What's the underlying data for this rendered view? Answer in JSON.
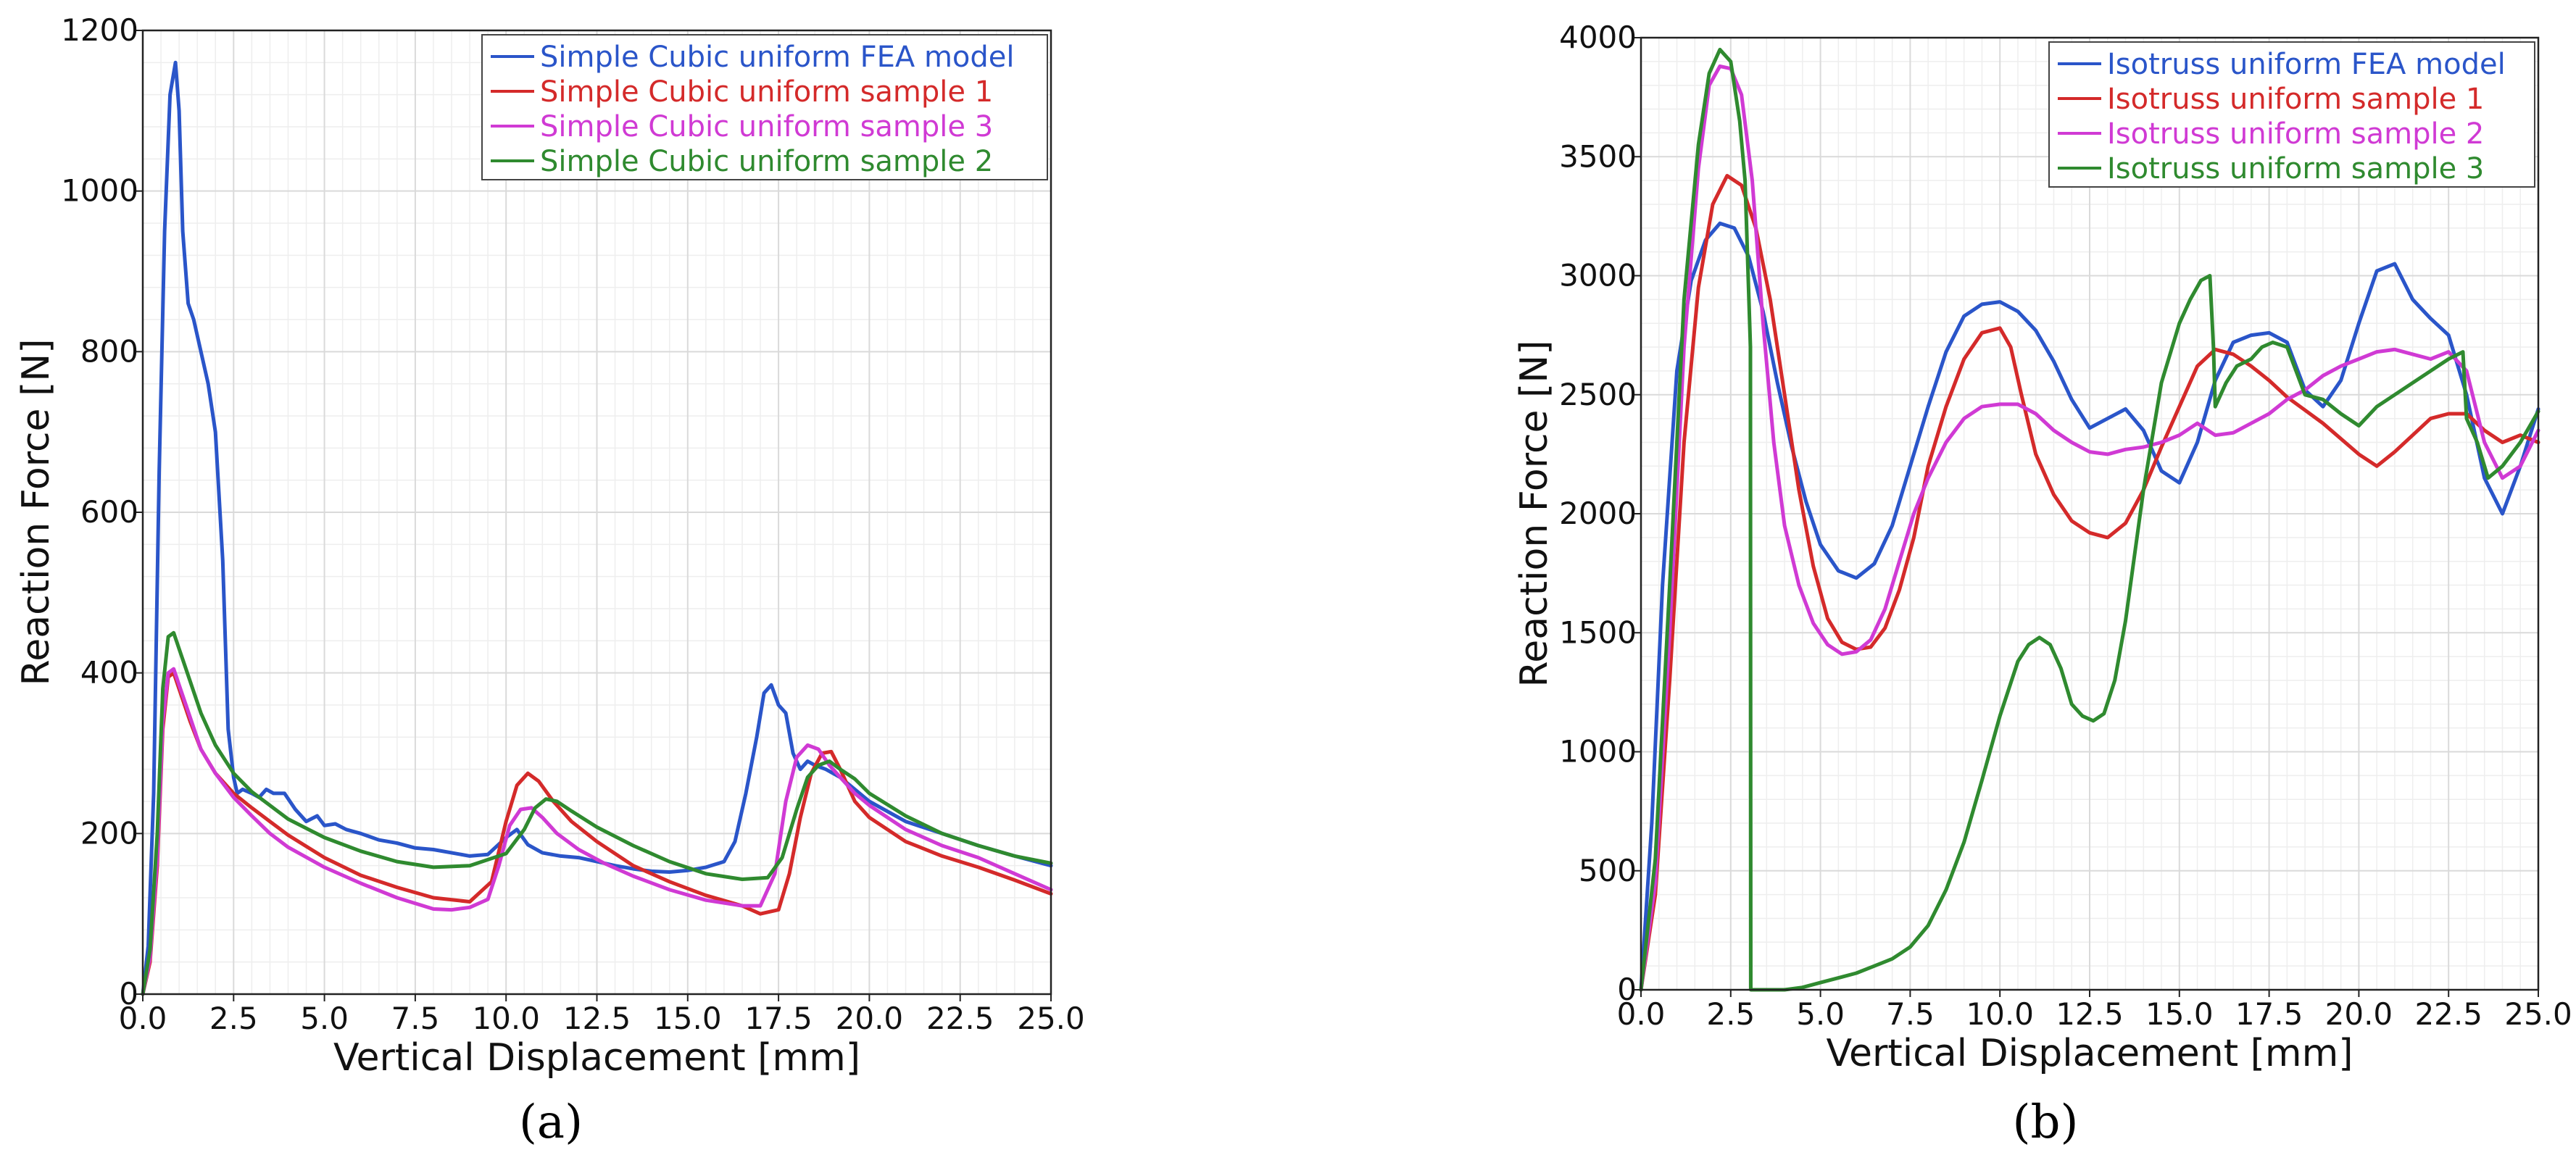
{
  "figure": {
    "panel_labels": [
      "(a)",
      "(b)"
    ]
  },
  "chart_data": [
    {
      "type": "line",
      "panel": "(a)",
      "xlabel": "Vertical Displacement [mm]",
      "ylabel": "Reaction Force [N]",
      "xlim": [
        0,
        25
      ],
      "ylim": [
        0,
        1200
      ],
      "xticks": [
        0,
        2.5,
        5,
        7.5,
        10,
        12.5,
        15,
        17.5,
        20,
        22.5,
        25
      ],
      "xtick_labels": [
        "0.0",
        "2.5",
        "5.0",
        "7.5",
        "10.0",
        "12.5",
        "15.0",
        "17.5",
        "20.0",
        "22.5",
        "25.0"
      ],
      "yticks": [
        0,
        200,
        400,
        600,
        800,
        1000,
        1200
      ],
      "ytick_labels": [
        "0",
        "200",
        "400",
        "600",
        "800",
        "1000",
        "1200"
      ],
      "grid": true,
      "legend_position": "top-right",
      "series": [
        {
          "name": "Simple Cubic uniform FEA model",
          "color": "#2a55c9",
          "x": [
            0,
            0.15,
            0.3,
            0.45,
            0.6,
            0.75,
            0.9,
            1.0,
            1.1,
            1.25,
            1.4,
            1.6,
            1.8,
            2.0,
            2.2,
            2.35,
            2.5,
            2.6,
            2.75,
            3.0,
            3.2,
            3.4,
            3.6,
            3.9,
            4.2,
            4.5,
            4.8,
            5.0,
            5.3,
            5.6,
            6.0,
            6.5,
            7.0,
            7.5,
            8.0,
            8.5,
            9.0,
            9.5,
            10.0,
            10.3,
            10.6,
            11.0,
            11.5,
            12.0,
            12.5,
            13.0,
            13.5,
            14.0,
            14.5,
            15.0,
            15.5,
            16.0,
            16.3,
            16.6,
            16.9,
            17.1,
            17.3,
            17.5,
            17.7,
            17.9,
            18.1,
            18.3,
            18.5,
            18.8,
            19.2,
            19.6,
            20.0,
            21.0,
            22.0,
            23.0,
            24.0,
            25.0
          ],
          "y": [
            0,
            60,
            250,
            650,
            950,
            1120,
            1160,
            1100,
            950,
            860,
            840,
            800,
            760,
            700,
            540,
            330,
            270,
            250,
            255,
            250,
            245,
            255,
            250,
            250,
            230,
            215,
            222,
            210,
            212,
            205,
            200,
            192,
            188,
            182,
            180,
            176,
            172,
            174,
            195,
            205,
            186,
            176,
            172,
            170,
            165,
            160,
            156,
            153,
            152,
            154,
            158,
            165,
            190,
            250,
            320,
            375,
            385,
            360,
            350,
            300,
            280,
            290,
            285,
            280,
            270,
            255,
            240,
            215,
            200,
            185,
            172,
            160
          ]
        },
        {
          "name": "Simple Cubic uniform sample 1",
          "color": "#d42a2a",
          "x": [
            0,
            0.2,
            0.4,
            0.55,
            0.7,
            0.85,
            1.0,
            1.3,
            1.6,
            2.0,
            2.5,
            3.0,
            3.5,
            4.0,
            5.0,
            6.0,
            7.0,
            8.0,
            9.0,
            9.6,
            10.0,
            10.3,
            10.6,
            10.9,
            11.3,
            11.8,
            12.5,
            13.5,
            14.5,
            15.5,
            16.5,
            17.0,
            17.5,
            17.8,
            18.1,
            18.4,
            18.7,
            18.95,
            19.2,
            19.6,
            20.0,
            21.0,
            22.0,
            23.0,
            24.0,
            25.0
          ],
          "y": [
            0,
            40,
            160,
            330,
            395,
            400,
            380,
            340,
            305,
            275,
            250,
            232,
            215,
            198,
            170,
            148,
            133,
            120,
            115,
            140,
            215,
            260,
            275,
            265,
            240,
            215,
            190,
            160,
            140,
            123,
            110,
            100,
            105,
            150,
            220,
            275,
            300,
            302,
            280,
            240,
            220,
            190,
            172,
            158,
            142,
            125
          ]
        },
        {
          "name": "Simple Cubic uniform sample 3",
          "color": "#d03ad4",
          "x": [
            0,
            0.2,
            0.4,
            0.55,
            0.7,
            0.85,
            1.0,
            1.3,
            1.6,
            2.0,
            2.5,
            3.0,
            3.5,
            4.0,
            5.0,
            6.0,
            7.0,
            8.0,
            8.5,
            9.0,
            9.5,
            9.8,
            10.1,
            10.4,
            10.7,
            11.0,
            11.4,
            12.0,
            12.7,
            13.5,
            14.5,
            15.5,
            16.5,
            17.0,
            17.4,
            17.7,
            18.0,
            18.3,
            18.6,
            18.9,
            19.2,
            19.6,
            20.0,
            21.0,
            22.0,
            23.0,
            24.0,
            25.0
          ],
          "y": [
            0,
            45,
            170,
            340,
            400,
            405,
            385,
            345,
            305,
            275,
            245,
            222,
            200,
            183,
            158,
            138,
            120,
            106,
            105,
            108,
            118,
            160,
            210,
            230,
            232,
            220,
            200,
            180,
            163,
            147,
            130,
            117,
            110,
            110,
            150,
            240,
            295,
            310,
            305,
            285,
            270,
            250,
            235,
            205,
            185,
            170,
            150,
            130
          ]
        },
        {
          "name": "Simple Cubic uniform sample 2",
          "color": "#2f8a2f",
          "x": [
            0,
            0.2,
            0.4,
            0.55,
            0.7,
            0.85,
            1.0,
            1.3,
            1.6,
            2.0,
            2.5,
            3.0,
            3.5,
            4.0,
            5.0,
            6.0,
            7.0,
            8.0,
            9.0,
            10.0,
            10.5,
            10.8,
            11.1,
            11.4,
            11.8,
            12.5,
            13.5,
            14.5,
            15.5,
            16.5,
            17.2,
            17.6,
            18.0,
            18.3,
            18.6,
            18.9,
            19.2,
            19.6,
            20.0,
            21.0,
            22.0,
            23.0,
            24.0,
            25.0
          ],
          "y": [
            0,
            55,
            200,
            380,
            445,
            450,
            430,
            390,
            350,
            310,
            275,
            252,
            235,
            218,
            195,
            178,
            165,
            158,
            160,
            175,
            205,
            232,
            243,
            240,
            228,
            208,
            185,
            165,
            150,
            143,
            145,
            170,
            230,
            270,
            285,
            290,
            280,
            268,
            250,
            222,
            200,
            185,
            172,
            163
          ]
        }
      ]
    },
    {
      "type": "line",
      "panel": "(b)",
      "xlabel": "Vertical Displacement [mm]",
      "ylabel": "Reaction Force [N]",
      "xlim": [
        0,
        25
      ],
      "ylim": [
        0,
        4000
      ],
      "xticks": [
        0,
        2.5,
        5,
        7.5,
        10,
        12.5,
        15,
        17.5,
        20,
        22.5,
        25
      ],
      "xtick_labels": [
        "0.0",
        "2.5",
        "5.0",
        "7.5",
        "10.0",
        "12.5",
        "15.0",
        "17.5",
        "20.0",
        "22.5",
        "25.0"
      ],
      "yticks": [
        0,
        500,
        1000,
        1500,
        2000,
        2500,
        3000,
        3500,
        4000
      ],
      "ytick_labels": [
        "0",
        "500",
        "1000",
        "1500",
        "2000",
        "2500",
        "3000",
        "3500",
        "4000"
      ],
      "grid": true,
      "legend_position": "top-right",
      "series": [
        {
          "name": "Isotruss uniform FEA model",
          "color": "#2a55c9",
          "x": [
            0,
            0.3,
            0.6,
            1.0,
            1.4,
            1.8,
            2.2,
            2.6,
            3.0,
            3.4,
            3.8,
            4.2,
            4.6,
            5.0,
            5.5,
            6.0,
            6.5,
            7.0,
            7.5,
            8.0,
            8.5,
            9.0,
            9.5,
            10.0,
            10.5,
            11.0,
            11.5,
            12.0,
            12.5,
            13.0,
            13.5,
            14.0,
            14.5,
            15.0,
            15.5,
            16.0,
            16.5,
            17.0,
            17.5,
            18.0,
            18.5,
            19.0,
            19.5,
            20.0,
            20.5,
            21.0,
            21.5,
            22.0,
            22.5,
            23.0,
            23.5,
            24.0,
            24.5,
            25.0
          ],
          "y": [
            0,
            700,
            1700,
            2600,
            2980,
            3150,
            3220,
            3200,
            3080,
            2850,
            2550,
            2280,
            2050,
            1870,
            1760,
            1730,
            1790,
            1950,
            2200,
            2450,
            2680,
            2830,
            2880,
            2890,
            2850,
            2770,
            2640,
            2480,
            2360,
            2400,
            2440,
            2350,
            2180,
            2130,
            2300,
            2560,
            2720,
            2750,
            2760,
            2720,
            2520,
            2450,
            2560,
            2800,
            3020,
            3050,
            2900,
            2820,
            2750,
            2500,
            2150,
            2000,
            2200,
            2440
          ]
        },
        {
          "name": "Isotruss uniform sample 1",
          "color": "#d42a2a",
          "x": [
            0,
            0.4,
            0.8,
            1.2,
            1.6,
            2.0,
            2.4,
            2.8,
            3.2,
            3.6,
            4.0,
            4.4,
            4.8,
            5.2,
            5.6,
            6.0,
            6.4,
            6.8,
            7.2,
            7.6,
            8.0,
            8.5,
            9.0,
            9.5,
            10.0,
            10.3,
            10.6,
            11.0,
            11.5,
            12.0,
            12.5,
            13.0,
            13.5,
            14.0,
            14.5,
            15.0,
            15.5,
            16.0,
            16.5,
            17.0,
            17.5,
            18.0,
            19.0,
            20.0,
            20.5,
            21.0,
            21.5,
            22.0,
            22.5,
            23.0,
            23.5,
            24.0,
            24.5,
            25.0
          ],
          "y": [
            0,
            400,
            1300,
            2300,
            2950,
            3300,
            3420,
            3380,
            3200,
            2900,
            2500,
            2100,
            1780,
            1560,
            1460,
            1430,
            1440,
            1520,
            1680,
            1900,
            2200,
            2450,
            2650,
            2760,
            2780,
            2700,
            2500,
            2250,
            2080,
            1970,
            1920,
            1900,
            1960,
            2100,
            2280,
            2450,
            2620,
            2690,
            2670,
            2620,
            2560,
            2490,
            2380,
            2250,
            2200,
            2260,
            2330,
            2400,
            2420,
            2420,
            2350,
            2300,
            2330,
            2300
          ]
        },
        {
          "name": "Isotruss uniform sample 2",
          "color": "#d03ad4",
          "x": [
            0,
            0.4,
            0.8,
            1.2,
            1.6,
            1.9,
            2.2,
            2.5,
            2.8,
            3.1,
            3.4,
            3.7,
            4.0,
            4.4,
            4.8,
            5.2,
            5.6,
            6.0,
            6.4,
            6.8,
            7.2,
            7.6,
            8.0,
            8.5,
            9.0,
            9.5,
            10.0,
            10.5,
            11.0,
            11.5,
            12.0,
            12.5,
            13.0,
            13.5,
            14.0,
            14.5,
            15.0,
            15.5,
            16.0,
            16.5,
            17.0,
            17.5,
            18.0,
            18.5,
            19.0,
            19.5,
            20.0,
            20.5,
            21.0,
            21.5,
            22.0,
            22.5,
            23.0,
            23.5,
            24.0,
            24.5,
            25.0
          ],
          "y": [
            0,
            450,
            1500,
            2700,
            3450,
            3800,
            3880,
            3870,
            3760,
            3400,
            2800,
            2300,
            1950,
            1700,
            1540,
            1450,
            1410,
            1420,
            1470,
            1600,
            1800,
            2000,
            2150,
            2300,
            2400,
            2450,
            2460,
            2460,
            2420,
            2350,
            2300,
            2260,
            2250,
            2270,
            2280,
            2300,
            2330,
            2380,
            2330,
            2340,
            2380,
            2420,
            2480,
            2520,
            2580,
            2620,
            2650,
            2680,
            2690,
            2670,
            2650,
            2680,
            2600,
            2300,
            2150,
            2200,
            2350
          ]
        },
        {
          "name": "Isotruss uniform sample 3",
          "color": "#2f8a2f",
          "x": [
            0,
            0.4,
            0.8,
            1.2,
            1.6,
            1.9,
            2.2,
            2.5,
            2.75,
            2.9,
            3.05,
            3.06,
            3.5,
            4.0,
            4.5,
            5.0,
            5.5,
            6.0,
            6.5,
            7.0,
            7.5,
            8.0,
            8.5,
            9.0,
            9.5,
            10.0,
            10.5,
            10.8,
            11.1,
            11.4,
            11.7,
            12.0,
            12.3,
            12.6,
            12.9,
            13.2,
            13.5,
            14.0,
            14.5,
            15.0,
            15.3,
            15.6,
            15.85,
            15.95,
            16.0,
            16.3,
            16.6,
            17.0,
            17.3,
            17.6,
            18.0,
            18.5,
            19.0,
            19.5,
            20.0,
            20.5,
            21.0,
            21.5,
            22.0,
            22.5,
            22.9,
            23.0,
            23.3,
            23.6,
            24.0,
            24.5,
            25.0
          ],
          "y": [
            0,
            550,
            1700,
            2900,
            3550,
            3850,
            3950,
            3900,
            3650,
            3400,
            2700,
            0,
            0,
            0,
            10,
            30,
            50,
            70,
            100,
            130,
            180,
            270,
            420,
            620,
            880,
            1150,
            1380,
            1450,
            1480,
            1450,
            1350,
            1200,
            1150,
            1130,
            1160,
            1300,
            1550,
            2100,
            2550,
            2800,
            2900,
            2980,
            3000,
            2700,
            2450,
            2550,
            2620,
            2650,
            2700,
            2720,
            2700,
            2500,
            2480,
            2420,
            2370,
            2450,
            2500,
            2550,
            2600,
            2650,
            2680,
            2400,
            2300,
            2150,
            2200,
            2300,
            2430
          ]
        }
      ]
    }
  ]
}
